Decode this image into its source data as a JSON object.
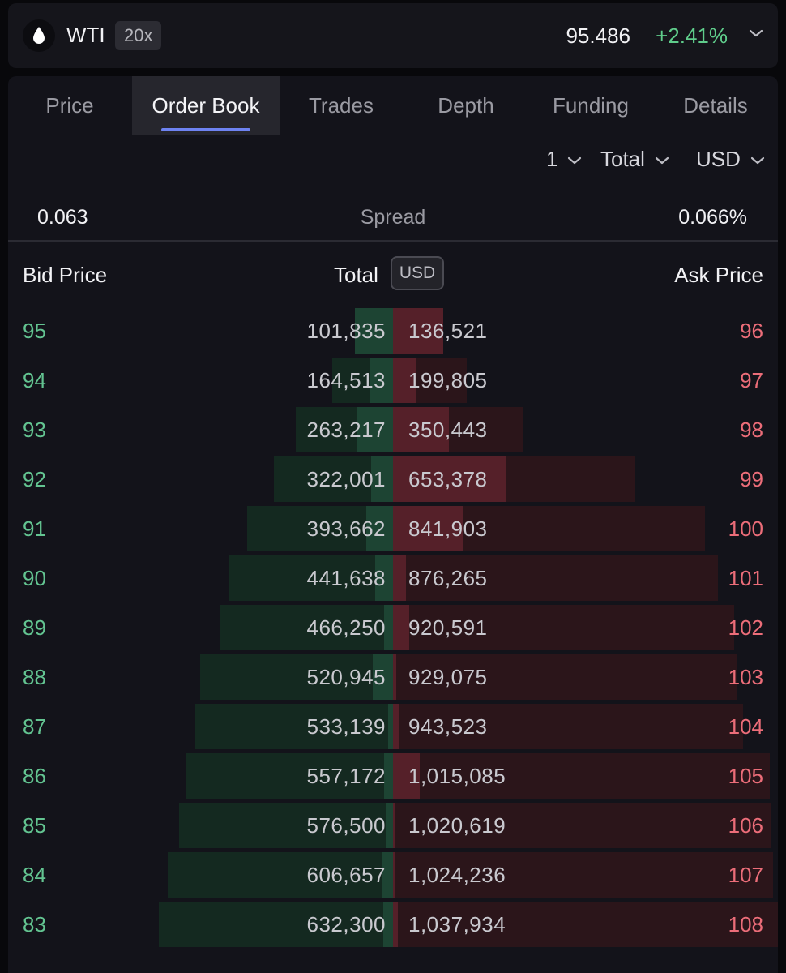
{
  "header": {
    "symbol": "WTI",
    "leverage": "20x",
    "price": "95.486",
    "change": "+2.41%",
    "icon": "drop-icon"
  },
  "tabs": [
    {
      "label": "Price"
    },
    {
      "label": "Order Book"
    },
    {
      "label": "Trades"
    },
    {
      "label": "Depth"
    },
    {
      "label": "Funding"
    },
    {
      "label": "Details"
    }
  ],
  "controls": {
    "grouping": "1",
    "mode": "Total",
    "currency": "USD"
  },
  "spread": {
    "value": "0.063",
    "label": "Spread",
    "percent": "0.066%"
  },
  "columns": {
    "bid_price": "Bid Price",
    "total": "Total",
    "unit": "USD",
    "ask_price": "Ask Price"
  },
  "book": {
    "max_total": 1037934,
    "rows": [
      {
        "bid": "95",
        "bid_total": "101,835",
        "ask_total": "136,521",
        "ask": "96"
      },
      {
        "bid": "94",
        "bid_total": "164,513",
        "ask_total": "199,805",
        "ask": "97"
      },
      {
        "bid": "93",
        "bid_total": "263,217",
        "ask_total": "350,443",
        "ask": "98"
      },
      {
        "bid": "92",
        "bid_total": "322,001",
        "ask_total": "653,378",
        "ask": "99"
      },
      {
        "bid": "91",
        "bid_total": "393,662",
        "ask_total": "841,903",
        "ask": "100"
      },
      {
        "bid": "90",
        "bid_total": "441,638",
        "ask_total": "876,265",
        "ask": "101"
      },
      {
        "bid": "89",
        "bid_total": "466,250",
        "ask_total": "920,591",
        "ask": "102"
      },
      {
        "bid": "88",
        "bid_total": "520,945",
        "ask_total": "929,075",
        "ask": "103"
      },
      {
        "bid": "87",
        "bid_total": "533,139",
        "ask_total": "943,523",
        "ask": "104"
      },
      {
        "bid": "86",
        "bid_total": "557,172",
        "ask_total": "1,015,085",
        "ask": "105"
      },
      {
        "bid": "85",
        "bid_total": "576,500",
        "ask_total": "1,020,619",
        "ask": "106"
      },
      {
        "bid": "84",
        "bid_total": "606,657",
        "ask_total": "1,024,236",
        "ask": "107"
      },
      {
        "bid": "83",
        "bid_total": "632,300",
        "ask_total": "1,037,934",
        "ask": "108"
      }
    ]
  },
  "colors": {
    "bid": "#63c491",
    "ask": "#ec6d79",
    "accent": "#6e83f2",
    "change_up": "#5fcc8b"
  }
}
